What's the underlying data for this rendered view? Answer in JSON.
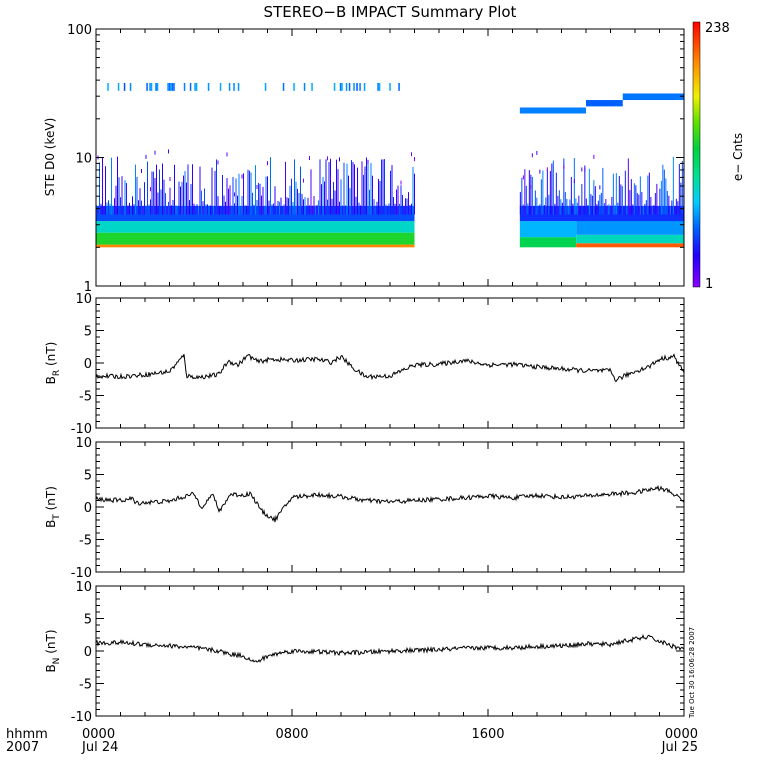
{
  "title": "STEREO−B IMPACT Summary Plot",
  "time_axis": {
    "row_label": "hhmm",
    "year_label": "2007",
    "ticks": [
      {
        "hours": 0,
        "time": "0000",
        "date": "Jul 24"
      },
      {
        "hours": 8,
        "time": "0800",
        "date": ""
      },
      {
        "hours": 16,
        "time": "1600",
        "date": ""
      },
      {
        "hours": 24,
        "time": "0000",
        "date": "Jul 25"
      }
    ]
  },
  "timestamp": "Tue Oct 30 16:06:28 2007",
  "colorbar": {
    "label": "e− Cnts",
    "max_label": "238",
    "min_label": "1"
  },
  "colors": {
    "axes": "#000000",
    "trace": "#000000",
    "background": "#ffffff"
  },
  "chart_data": [
    {
      "type": "heatmap",
      "name": "ste-d0-spectrogram",
      "ylabel": "STE D0 (keV)",
      "yscale": "log",
      "ylim": [
        1,
        100
      ],
      "yticks": [
        {
          "v": 1,
          "label": "1"
        },
        {
          "v": 10,
          "label": "10"
        },
        {
          "v": 100,
          "label": "100"
        }
      ],
      "xlim_hours": [
        0,
        24
      ],
      "data_gap_hours": [
        13.0,
        17.3
      ],
      "colorscale": {
        "min": 1,
        "max": 238,
        "label": "e− Cnts"
      },
      "bands": [
        {
          "from_h": 0.0,
          "to_h": 13.0,
          "e_low": 2.0,
          "e_high": 2.1,
          "level": 0.85
        },
        {
          "from_h": 0.0,
          "to_h": 13.0,
          "e_low": 2.1,
          "e_high": 2.6,
          "level": 0.55
        },
        {
          "from_h": 0.0,
          "to_h": 13.0,
          "e_low": 2.6,
          "e_high": 3.2,
          "level": 0.37
        },
        {
          "from_h": 0.0,
          "to_h": 13.0,
          "e_low": 3.2,
          "e_high": 4.2,
          "level": 0.2
        },
        {
          "from_h": 17.3,
          "to_h": 19.6,
          "e_low": 2.0,
          "e_high": 2.4,
          "level": 0.5
        },
        {
          "from_h": 17.3,
          "to_h": 19.6,
          "e_low": 2.4,
          "e_high": 3.2,
          "level": 0.3
        },
        {
          "from_h": 19.6,
          "to_h": 24.0,
          "e_low": 2.0,
          "e_high": 2.15,
          "level": 0.9
        },
        {
          "from_h": 19.6,
          "to_h": 24.0,
          "e_low": 2.15,
          "e_high": 2.5,
          "level": 0.38
        },
        {
          "from_h": 19.6,
          "to_h": 24.0,
          "e_low": 2.5,
          "e_high": 3.3,
          "level": 0.27
        },
        {
          "from_h": 17.3,
          "to_h": 24.0,
          "e_low": 3.2,
          "e_high": 4.2,
          "level": 0.17
        },
        {
          "from_h": 17.3,
          "to_h": 20.0,
          "e_low": 22.0,
          "e_high": 24.5,
          "level": 0.25
        },
        {
          "from_h": 20.0,
          "to_h": 21.5,
          "e_low": 25.0,
          "e_high": 28.0,
          "level": 0.22
        },
        {
          "from_h": 21.5,
          "to_h": 24.0,
          "e_low": 28.0,
          "e_high": 31.5,
          "level": 0.24
        }
      ],
      "sparse_band": {
        "from_h": 0.4,
        "to_h": 13.0,
        "e_low": 33.0,
        "e_high": 38.0,
        "level": 0.2
      }
    },
    {
      "type": "line",
      "name": "BR",
      "ylabel": "B",
      "ylabel_sub": "R",
      "ylabel_unit": "(nT)",
      "ylim": [
        -10,
        10
      ],
      "yticks": [
        -10,
        -5,
        0,
        5,
        10
      ],
      "x_unit": "hours",
      "x": [
        0,
        1,
        2,
        3,
        3.6,
        3.7,
        4.2,
        5,
        5.4,
        5.8,
        6.2,
        6.6,
        7.2,
        8,
        9,
        9.6,
        10,
        10.5,
        11,
        12,
        13,
        14,
        15,
        16,
        17,
        18,
        19,
        20,
        21,
        21.2,
        22,
        22.6,
        23,
        23.6,
        24
      ],
      "y": [
        -2.0,
        -2.1,
        -1.8,
        -1.3,
        1.2,
        -2.0,
        -2.2,
        -1.8,
        0.3,
        -0.3,
        1.2,
        0.2,
        0.6,
        0.4,
        0.6,
        0.1,
        1.0,
        -0.8,
        -2.1,
        -2.0,
        -0.3,
        -0.2,
        0.4,
        -0.3,
        -0.2,
        -0.6,
        -0.9,
        -1.2,
        -1.2,
        -2.6,
        -1.3,
        -0.5,
        0.6,
        1.0,
        -1.5
      ]
    },
    {
      "type": "line",
      "name": "BT",
      "ylabel": "B",
      "ylabel_sub": "T",
      "ylabel_unit": "(nT)",
      "ylim": [
        -10,
        10
      ],
      "yticks": [
        -10,
        -5,
        0,
        5,
        10
      ],
      "x_unit": "hours",
      "x": [
        0,
        1,
        1.5,
        1.6,
        3,
        3.5,
        4.0,
        4.3,
        4.8,
        5.0,
        5.5,
        6.0,
        6.3,
        6.8,
        7.3,
        8,
        9,
        10,
        11,
        12,
        13,
        14,
        15,
        16,
        17,
        18,
        19,
        20,
        21,
        22,
        22.5,
        23,
        23.4,
        24
      ],
      "y": [
        1.2,
        1.0,
        1.3,
        0.6,
        0.9,
        1.5,
        2.0,
        0.0,
        2.0,
        -0.8,
        2.0,
        1.8,
        2.1,
        -0.8,
        -2.0,
        1.5,
        1.9,
        1.6,
        1.0,
        0.8,
        1.0,
        1.2,
        1.4,
        1.7,
        1.4,
        1.8,
        1.5,
        1.7,
        2.0,
        2.2,
        2.6,
        2.9,
        2.4,
        1.0
      ]
    },
    {
      "type": "line",
      "name": "BN",
      "ylabel": "B",
      "ylabel_sub": "N",
      "ylabel_unit": "(nT)",
      "ylim": [
        -10,
        10
      ],
      "yticks": [
        -10,
        -5,
        0,
        5,
        10
      ],
      "x_unit": "hours",
      "x": [
        0,
        1,
        2,
        3,
        4,
        5,
        5.5,
        6,
        6.5,
        7,
        7.5,
        8,
        9,
        10,
        11,
        12,
        13,
        14,
        15,
        16,
        17,
        18,
        19,
        20,
        21,
        21.5,
        22,
        22.5,
        23,
        23.5,
        24
      ],
      "y": [
        1.2,
        1.3,
        1.0,
        0.8,
        0.5,
        0.0,
        -0.5,
        -0.7,
        -1.8,
        -0.8,
        -0.3,
        0.0,
        -0.1,
        -0.3,
        -0.2,
        0.0,
        0.1,
        0.2,
        0.4,
        0.5,
        0.5,
        0.7,
        0.8,
        1.1,
        1.0,
        1.5,
        1.8,
        2.2,
        1.5,
        0.8,
        0.3
      ]
    }
  ]
}
